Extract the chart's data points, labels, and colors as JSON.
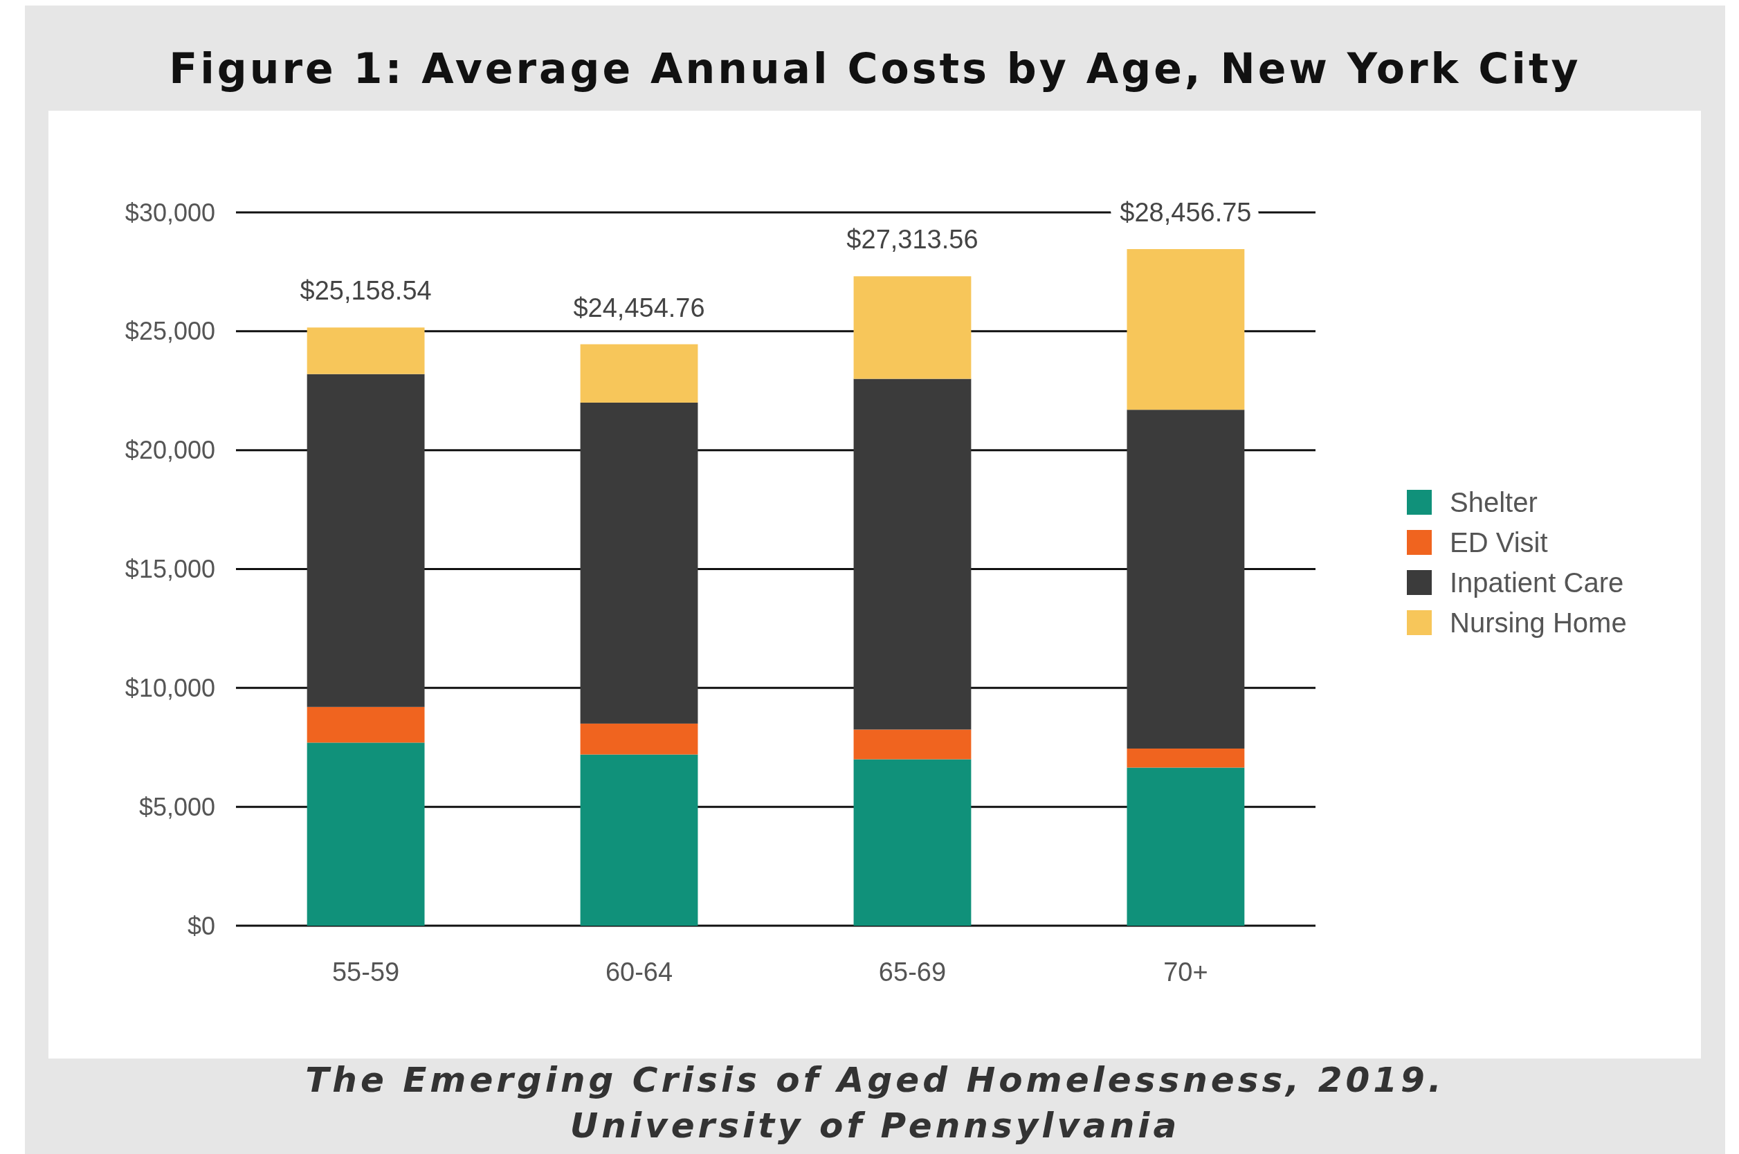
{
  "chart_data": {
    "type": "bar",
    "title": "Figure 1: Average Annual Costs by Age, New York City",
    "categories": [
      "55-59",
      "60-64",
      "65-69",
      "70+"
    ],
    "stacked": true,
    "series": [
      {
        "name": "Shelter",
        "color": "#10917a",
        "values": [
          7700,
          7200,
          7000,
          6650
        ]
      },
      {
        "name": "ED Visit",
        "color": "#f0641f",
        "values": [
          1500,
          1300,
          1250,
          800
        ]
      },
      {
        "name": "Inpatient Care",
        "color": "#3b3b3b",
        "values": [
          14000,
          13500,
          14750,
          14250
        ]
      },
      {
        "name": "Nursing Home",
        "color": "#f7c65a",
        "values": [
          1958.54,
          2454.76,
          4313.56,
          6756.75
        ]
      }
    ],
    "totals": [
      "$25,158.54",
      "$24,454.76",
      "$27,313.56",
      "$28,456.75"
    ],
    "ylim": [
      0,
      30000
    ],
    "yticks": [
      {
        "value": 0,
        "label": "$0"
      },
      {
        "value": 5000,
        "label": "$5,000"
      },
      {
        "value": 10000,
        "label": "$10,000"
      },
      {
        "value": 15000,
        "label": "$15,000"
      },
      {
        "value": 20000,
        "label": "$20,000"
      },
      {
        "value": 25000,
        "label": "$25,000"
      },
      {
        "value": 30000,
        "label": "$30,000"
      }
    ],
    "grid": "y",
    "legend": "right",
    "annotations": [
      "The Emerging Crisis of Aged Homelessness, 2019.",
      "University of Pennsylvania"
    ]
  }
}
